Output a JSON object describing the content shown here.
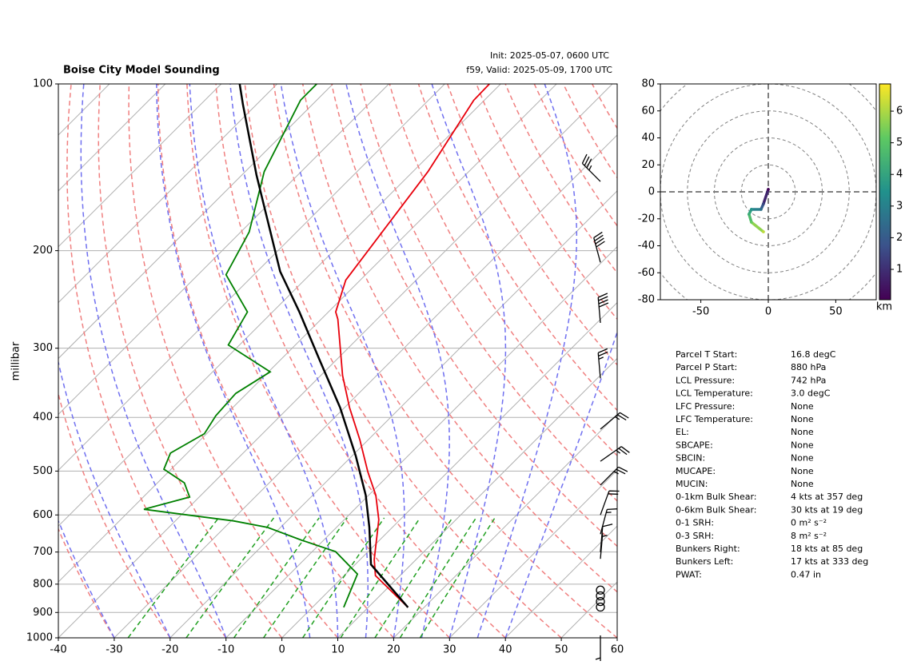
{
  "chart_data": [
    {
      "type": "skewt",
      "title": "Boise City Model Sounding",
      "subtitle_lines": [
        "Init: 2025-05-07, 0600 UTC",
        "f59, Valid: 2025-05-09, 1700 UTC"
      ],
      "ylabel": "millibar",
      "xlim": [
        -40,
        60
      ],
      "xticks": [
        -40,
        -30,
        -20,
        -10,
        0,
        10,
        20,
        30,
        40,
        50,
        60
      ],
      "ylim": [
        1000,
        100
      ],
      "yticks": [
        100,
        200,
        300,
        400,
        500,
        600,
        700,
        800,
        900,
        1000
      ],
      "log_y": true,
      "grid": true,
      "series": [
        {
          "color": "#e8000b",
          "pressure": [
            881,
            772,
            722,
            612,
            553,
            501,
            439,
            384,
            336,
            266,
            258,
            226,
            144,
            107,
            100
          ],
          "values": [
            17.1,
            5.6,
            2.5,
            -3.8,
            -8.7,
            -14.4,
            -21.5,
            -29.1,
            -36.1,
            -47,
            -48.7,
            -52.6,
            -57.3,
            -61.9,
            -62
          ]
        },
        {
          "color": "#008000",
          "pressure": [
            881,
            767,
            699,
            667,
            632,
            615,
            586,
            557,
            525,
            496,
            464,
            428,
            397,
            362,
            331,
            296,
            258,
            221,
            185,
            144,
            107,
            100
          ],
          "values": [
            5.6,
            2.1,
            -5.8,
            -13.8,
            -22.3,
            -29.6,
            -47.7,
            -41.7,
            -45.2,
            -51.3,
            -53,
            -50.4,
            -51.6,
            -52,
            -49.7,
            -62,
            -64.5,
            -75,
            -78.5,
            -86.6,
            -92.9,
            -92.9
          ]
        },
        {
          "color": "#000000",
          "pressure": [
            881,
            737,
            632,
            553,
            469,
            384,
            315,
            258,
            218,
            146,
            109,
            100
          ],
          "values": [
            17.1,
            2.8,
            -4.1,
            -10.5,
            -19.4,
            -30.8,
            -43,
            -55.2,
            -65.9,
            -87.4,
            -102.4,
            -106.7
          ]
        }
      ],
      "wind_barbs": {
        "pressure": [
          990,
          880,
          860,
          840,
          820,
          720,
          700,
          650,
          600,
          530,
          480,
          420,
          340,
          270,
          210,
          150
        ],
        "direction": [
          180,
          0,
          0,
          0,
          0,
          5,
          5,
          15,
          20,
          45,
          55,
          50,
          355,
          355,
          345,
          315
        ],
        "speed": [
          5,
          0,
          0,
          0,
          0,
          5,
          10,
          15,
          20,
          25,
          25,
          25,
          25,
          40,
          40,
          35
        ]
      }
    },
    {
      "type": "hodograph",
      "x": [
        0,
        -3.6,
        -5.4,
        -12.5,
        -14.3,
        -12.5,
        -3.6
      ],
      "y": [
        1.8,
        -8.9,
        -13,
        -13,
        -16.6,
        -22.5,
        -29.6
      ],
      "heights": [
        0.1,
        1.5,
        2.5,
        3.5,
        4.3,
        5.2,
        6.2
      ],
      "xlim": [
        -80,
        80
      ],
      "xticks": [
        -50,
        0,
        50
      ],
      "ylim": [
        -80,
        80
      ],
      "yticks": [
        -80,
        -60,
        -40,
        -20,
        0,
        20,
        40,
        60,
        80
      ],
      "colorbar": {
        "label": "km",
        "lim": [
          0.04,
          6.86
        ],
        "ticks": [
          1,
          2,
          3,
          4,
          5,
          6
        ]
      }
    }
  ],
  "parameters": [
    [
      "Parcel T Start:",
      "16.8 degC"
    ],
    [
      "Parcel P Start:",
      "880 hPa"
    ],
    [
      "LCL Pressure:",
      "742 hPa"
    ],
    [
      "LCL Temperature:",
      "3.0 degC"
    ],
    [
      "LFC Pressure:",
      "None"
    ],
    [
      "LFC Temperature:",
      "None"
    ],
    [
      "EL:",
      "None"
    ],
    [
      "SBCAPE:",
      "None"
    ],
    [
      "SBCIN:",
      "None"
    ],
    [
      "MUCAPE:",
      "None"
    ],
    [
      "MUCIN:",
      "None"
    ],
    [
      "0-1km Bulk Shear:",
      "4 kts at 357 deg"
    ],
    [
      "0-6km Bulk Shear:",
      "30 kts at 19 deg"
    ],
    [
      "0-1 SRH:",
      "0 m² s⁻²"
    ],
    [
      "0-3 SRH:",
      "8 m² s⁻²"
    ],
    [
      "Bunkers Right:",
      "18 kts at 85 deg"
    ],
    [
      "Bunkers Left:",
      "17 kts at 333 deg"
    ],
    [
      "PWAT:",
      "0.47 in"
    ]
  ]
}
